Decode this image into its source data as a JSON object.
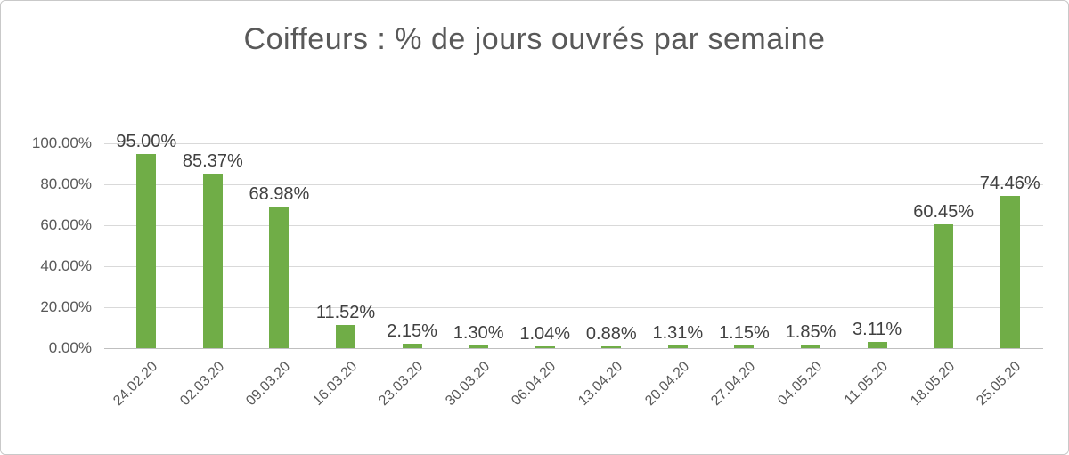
{
  "frame": {
    "background": "#ffffff",
    "border_color": "#c9c9c9"
  },
  "chart_data": {
    "type": "bar",
    "title": "Coiffeurs : % de jours ouvrés par semaine",
    "categories": [
      "24.02.20",
      "02.03.20",
      "09.03.20",
      "16.03.20",
      "23.03.20",
      "30.03.20",
      "06.04.20",
      "13.04.20",
      "20.04.20",
      "27.04.20",
      "04.05.20",
      "11.05.20",
      "18.05.20",
      "25.05.20"
    ],
    "values": [
      95.0,
      85.37,
      68.98,
      11.52,
      2.15,
      1.3,
      1.04,
      0.88,
      1.31,
      1.15,
      1.85,
      3.11,
      60.45,
      74.46
    ],
    "labels": [
      "95.00%",
      "85.37%",
      "68.98%",
      "11.52%",
      "2.15%",
      "1.30%",
      "1.04%",
      "0.88%",
      "1.31%",
      "1.15%",
      "1.85%",
      "3.11%",
      "60.45%",
      "74.46%"
    ],
    "xlabel": "",
    "ylabel": "",
    "ylim": [
      0,
      100
    ],
    "y_ticks": [
      {
        "label": "100.00%",
        "value": 100
      },
      {
        "label": "80.00%",
        "value": 80
      },
      {
        "label": "60.00%",
        "value": 60
      },
      {
        "label": "40.00%",
        "value": 40
      },
      {
        "label": "20.00%",
        "value": 20
      },
      {
        "label": "0.00%",
        "value": 0
      }
    ],
    "grid": true,
    "legend": "none",
    "bar_color": "#70AD47",
    "gridline_color": "#d9d9d9",
    "axis_text_color": "#595959",
    "data_label_color": "#404040",
    "title_color": "#595959"
  }
}
